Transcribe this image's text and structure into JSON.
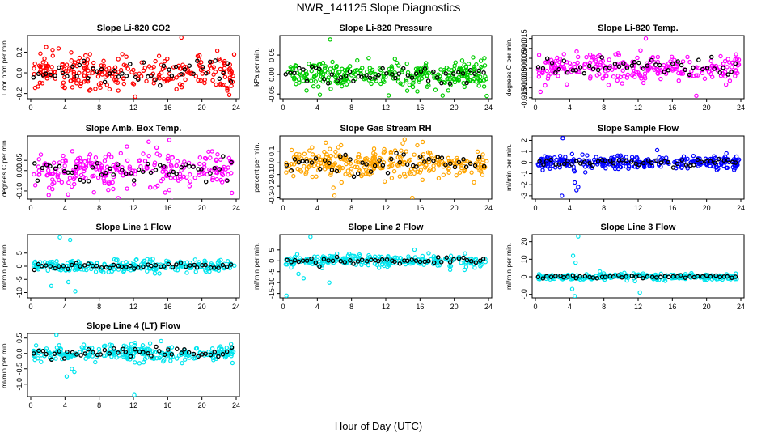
{
  "figure": {
    "title": "NWR_141125  Slope Diagnostics",
    "xlabel": "Hour of Day (UTC)"
  },
  "chart_data": [
    {
      "type": "scatter",
      "title": "Slope Li-820 CO2",
      "ylabel": "Licor ppm per min.",
      "color": "#ff0000",
      "xlim": [
        0,
        24
      ],
      "ylim": [
        -0.25,
        0.36
      ],
      "xticks": [
        0,
        4,
        8,
        12,
        16,
        20,
        24
      ],
      "yticks": [
        -0.2,
        0.0,
        0.2
      ],
      "ytick_labels": [
        "-0.2",
        "0.0",
        "0.2"
      ],
      "spread": 0.2,
      "n": 260,
      "outliers": [
        [
          17.6,
          0.34
        ],
        [
          12.2,
          -0.23
        ],
        [
          1.8,
          0.25
        ]
      ]
    },
    {
      "type": "scatter",
      "title": "Slope Li-820 Pressure",
      "ylabel": "kPa per min.",
      "color": "#00cc00",
      "xlim": [
        0,
        24
      ],
      "ylim": [
        -0.062,
        0.1
      ],
      "xticks": [
        0,
        4,
        8,
        12,
        16,
        20,
        24
      ],
      "yticks": [
        -0.05,
        0.0,
        0.05
      ],
      "ytick_labels": [
        "-0.05",
        "0.00",
        "0.05"
      ],
      "spread": 0.035,
      "n": 300,
      "outliers": [
        [
          5.5,
          0.09
        ],
        [
          4.3,
          -0.052
        ],
        [
          23.8,
          -0.055
        ]
      ]
    },
    {
      "type": "scatter",
      "title": "Slope Li-820 Temp.",
      "ylabel": "degrees C per min.",
      "color": "#ff00ff",
      "xlim": [
        0,
        24
      ],
      "ylim": [
        -0.0155,
        0.0165
      ],
      "xticks": [
        0,
        4,
        8,
        12,
        16,
        20,
        24
      ],
      "yticks": [
        -0.015,
        -0.01,
        -0.005,
        0.0,
        0.005,
        0.01,
        0.015
      ],
      "ytick_labels": [
        "-0.015",
        "-0.010",
        "-0.005",
        "0.000",
        "0.005",
        "0.010",
        "0.015"
      ],
      "spread": 0.008,
      "n": 260,
      "outliers": [
        [
          12.9,
          0.015
        ],
        [
          18.8,
          -0.014
        ],
        [
          0.6,
          -0.012
        ]
      ]
    },
    {
      "type": "scatter",
      "title": "Slope Amb. Box Temp.",
      "ylabel": "degrees C per min.",
      "color": "#ff00ff",
      "xlim": [
        0,
        24
      ],
      "ylim": [
        -0.14,
        0.17
      ],
      "xticks": [
        0,
        4,
        8,
        12,
        16,
        20,
        24
      ],
      "yticks": [
        -0.1,
        0.0,
        0.05
      ],
      "ytick_labels": [
        "-0.10",
        "0.00",
        "0.05"
      ],
      "spread": 0.1,
      "n": 260,
      "outliers": [
        [
          16.2,
          0.15
        ],
        [
          2.1,
          -0.12
        ],
        [
          23.5,
          -0.11
        ]
      ]
    },
    {
      "type": "scatter",
      "title": "Slope Gas Stream RH",
      "ylabel": "percent per min.",
      "color": "#ffa500",
      "xlim": [
        0,
        24
      ],
      "ylim": [
        -0.31,
        0.23
      ],
      "xticks": [
        0,
        4,
        8,
        12,
        16,
        20,
        24
      ],
      "yticks": [
        -0.3,
        -0.2,
        -0.1,
        0.0,
        0.1
      ],
      "ytick_labels": [
        "-0.3",
        "-0.2",
        "-0.1",
        "0.0",
        "0.1"
      ],
      "spread": 0.14,
      "n": 300,
      "outliers": [
        [
          15.1,
          -0.3
        ],
        [
          14.2,
          0.2
        ],
        [
          6.0,
          -0.28
        ]
      ]
    },
    {
      "type": "scatter",
      "title": "Slope Sample Flow",
      "ylabel": "ml/min per min.",
      "color": "#0000ff",
      "xlim": [
        0,
        24
      ],
      "ylim": [
        -3.3,
        2.4
      ],
      "xticks": [
        0,
        4,
        8,
        12,
        16,
        20,
        24
      ],
      "yticks": [
        -3,
        -2,
        -1,
        0,
        1,
        2
      ],
      "ytick_labels": [
        "-3",
        "-2",
        "-1",
        "0",
        "1",
        "2"
      ],
      "spread": 0.7,
      "n": 280,
      "outliers": [
        [
          3.2,
          2.2
        ],
        [
          3.1,
          -3.0
        ],
        [
          4.8,
          -2.5
        ],
        [
          5.0,
          -2.2
        ],
        [
          4.6,
          -1.8
        ]
      ]
    },
    {
      "type": "scatter",
      "title": "Slope Line 1 Flow",
      "ylabel": "ml/min per min.",
      "color": "#00e5ee",
      "xlim": [
        0,
        24
      ],
      "ylim": [
        -12,
        12
      ],
      "xticks": [
        0,
        4,
        8,
        12,
        16,
        20,
        24
      ],
      "yticks": [
        -10,
        -5,
        0,
        5
      ],
      "ytick_labels": [
        "-10",
        "-5",
        "0",
        "5"
      ],
      "spread": 2.5,
      "n": 260,
      "outliers": [
        [
          3.4,
          11
        ],
        [
          4.6,
          10
        ],
        [
          2.4,
          -7.5
        ],
        [
          5.2,
          -9.5
        ],
        [
          4.4,
          -6
        ]
      ]
    },
    {
      "type": "scatter",
      "title": "Slope Line 2 Flow",
      "ylabel": "ml/min per min.",
      "color": "#00e5ee",
      "xlim": [
        0,
        24
      ],
      "ylim": [
        -17,
        12
      ],
      "xticks": [
        0,
        4,
        8,
        12,
        16,
        20,
        24
      ],
      "yticks": [
        -15,
        -10,
        -5,
        0,
        5
      ],
      "ytick_labels": [
        "-15",
        "-10",
        "-5",
        "0",
        "5"
      ],
      "spread": 3,
      "n": 260,
      "outliers": [
        [
          3.2,
          11
        ],
        [
          0.4,
          -16
        ],
        [
          2.4,
          -8
        ],
        [
          5.4,
          -10
        ],
        [
          1.8,
          -6
        ]
      ]
    },
    {
      "type": "scatter",
      "title": "Slope Line 3 Flow",
      "ylabel": "ml/min per min.",
      "color": "#00e5ee",
      "xlim": [
        0,
        24
      ],
      "ylim": [
        -12,
        24
      ],
      "xticks": [
        0,
        4,
        8,
        12,
        16,
        20,
        24
      ],
      "yticks": [
        -10,
        0,
        10,
        20
      ],
      "ytick_labels": [
        "-10",
        "0",
        "10",
        "20"
      ],
      "spread": 2,
      "n": 260,
      "outliers": [
        [
          5.0,
          23
        ],
        [
          4.4,
          12
        ],
        [
          4.7,
          8
        ],
        [
          4.6,
          -11
        ],
        [
          12.2,
          -9
        ],
        [
          4.3,
          -7
        ]
      ]
    },
    {
      "type": "scatter",
      "title": "Slope Line 4 (LT) Flow",
      "ylabel": "ml/min per min.",
      "color": "#00e5ee",
      "xlim": [
        0,
        24
      ],
      "ylim": [
        -1.4,
        0.65
      ],
      "xticks": [
        0,
        4,
        8,
        12,
        16,
        20,
        24
      ],
      "yticks": [
        -1.0,
        -0.5,
        0.0,
        0.5
      ],
      "ytick_labels": [
        "-1.0",
        "-0.5",
        "0.0",
        "0.5"
      ],
      "spread": 0.3,
      "n": 260,
      "outliers": [
        [
          12.1,
          -1.35
        ],
        [
          4.2,
          -0.75
        ],
        [
          5.1,
          -0.6
        ],
        [
          3.0,
          0.6
        ],
        [
          4.8,
          -0.5
        ]
      ]
    }
  ]
}
